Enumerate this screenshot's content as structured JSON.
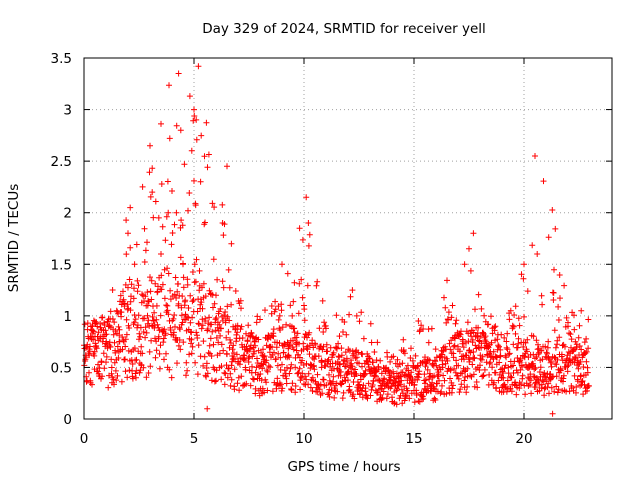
{
  "chart_data": {
    "type": "scatter",
    "title": "Day 329 of 2024, SRMTID for receiver yell",
    "xlabel": "GPS time / hours",
    "ylabel": "SRMTID / TECUs",
    "xlim": [
      0,
      24
    ],
    "ylim": [
      0,
      3.5
    ],
    "x_ticks": [
      "0",
      "5",
      "10",
      "15",
      "20"
    ],
    "y_ticks": [
      "0",
      "0.5",
      "1",
      "1.5",
      "2",
      "2.5",
      "3",
      "3.5"
    ],
    "grid": true,
    "marker": "+",
    "color": "#ff0000",
    "series_name": "SRMTID",
    "envelope": {
      "description": "approximate per-hour baseline median and peak values of the dense scatter",
      "hours": [
        0,
        1,
        2,
        3,
        4,
        5,
        6,
        7,
        8,
        9,
        10,
        11,
        12,
        13,
        14,
        15,
        16,
        17,
        18,
        19,
        20,
        21,
        22,
        23
      ],
      "median": [
        0.6,
        0.65,
        0.85,
        0.9,
        0.8,
        1.0,
        0.75,
        0.6,
        0.5,
        0.6,
        0.55,
        0.45,
        0.45,
        0.4,
        0.3,
        0.35,
        0.4,
        0.55,
        0.6,
        0.55,
        0.5,
        0.5,
        0.55,
        0.5
      ],
      "peak": [
        0.95,
        0.95,
        2.05,
        2.65,
        3.35,
        3.42,
        2.45,
        1.2,
        1.0,
        1.5,
        2.15,
        1.05,
        1.25,
        0.95,
        0.6,
        0.95,
        0.9,
        1.8,
        1.2,
        1.05,
        1.5,
        2.55,
        1.05,
        1.0
      ]
    },
    "points": [
      [
        0.1,
        0.6
      ],
      [
        0.3,
        0.35
      ],
      [
        0.5,
        0.8
      ],
      [
        0.8,
        0.55
      ],
      [
        1.2,
        0.7
      ],
      [
        1.6,
        0.75
      ],
      [
        1.9,
        1.3
      ],
      [
        2.0,
        1.8
      ],
      [
        2.1,
        2.05
      ],
      [
        2.3,
        1.5
      ],
      [
        2.6,
        0.7
      ],
      [
        2.9,
        1.1
      ],
      [
        3.0,
        2.65
      ],
      [
        3.1,
        2.2
      ],
      [
        3.4,
        1.95
      ],
      [
        3.5,
        1.6
      ],
      [
        3.8,
        0.5
      ],
      [
        4.2,
        2.0
      ],
      [
        4.3,
        3.35
      ],
      [
        4.4,
        2.8
      ],
      [
        4.5,
        1.5
      ],
      [
        4.9,
        2.6
      ],
      [
        5.0,
        3.0
      ],
      [
        5.1,
        2.9
      ],
      [
        5.2,
        3.42
      ],
      [
        5.3,
        2.3
      ],
      [
        5.5,
        0.95
      ],
      [
        5.6,
        0.1
      ],
      [
        6.0,
        1.2
      ],
      [
        6.3,
        1.9
      ],
      [
        6.5,
        2.45
      ],
      [
        6.7,
        1.7
      ],
      [
        6.9,
        0.9
      ],
      [
        7.3,
        0.7
      ],
      [
        7.8,
        0.45
      ],
      [
        8.1,
        0.25
      ],
      [
        8.5,
        0.6
      ],
      [
        8.9,
        1.0
      ],
      [
        9.0,
        1.5
      ],
      [
        9.3,
        0.7
      ],
      [
        9.6,
        0.5
      ],
      [
        9.8,
        1.85
      ],
      [
        10.0,
        1.1
      ],
      [
        10.1,
        2.15
      ],
      [
        10.2,
        1.9
      ],
      [
        10.4,
        0.4
      ],
      [
        10.8,
        0.5
      ],
      [
        11.2,
        0.35
      ],
      [
        11.6,
        0.6
      ],
      [
        12.1,
        0.5
      ],
      [
        12.2,
        1.25
      ],
      [
        12.4,
        1.0
      ],
      [
        12.8,
        0.3
      ],
      [
        13.2,
        0.65
      ],
      [
        13.5,
        0.2
      ],
      [
        13.8,
        0.35
      ],
      [
        14.1,
        0.15
      ],
      [
        14.3,
        0.4
      ],
      [
        14.6,
        0.2
      ],
      [
        14.9,
        0.25
      ],
      [
        15.2,
        0.95
      ],
      [
        15.5,
        0.6
      ],
      [
        15.9,
        0.3
      ],
      [
        16.3,
        0.5
      ],
      [
        16.7,
        0.35
      ],
      [
        17.0,
        0.7
      ],
      [
        17.3,
        1.5
      ],
      [
        17.5,
        1.65
      ],
      [
        17.7,
        1.8
      ],
      [
        17.9,
        0.5
      ],
      [
        18.3,
        0.55
      ],
      [
        18.7,
        0.9
      ],
      [
        19.0,
        0.4
      ],
      [
        19.4,
        1.05
      ],
      [
        19.8,
        0.35
      ],
      [
        20.0,
        1.5
      ],
      [
        20.2,
        0.6
      ],
      [
        20.5,
        2.55
      ],
      [
        20.6,
        1.6
      ],
      [
        20.8,
        0.3
      ],
      [
        21.1,
        0.75
      ],
      [
        21.3,
        0.05
      ],
      [
        21.6,
        0.45
      ],
      [
        22.0,
        0.9
      ],
      [
        22.3,
        0.55
      ],
      [
        22.6,
        1.05
      ],
      [
        22.8,
        0.3
      ],
      [
        22.9,
        0.45
      ]
    ]
  }
}
